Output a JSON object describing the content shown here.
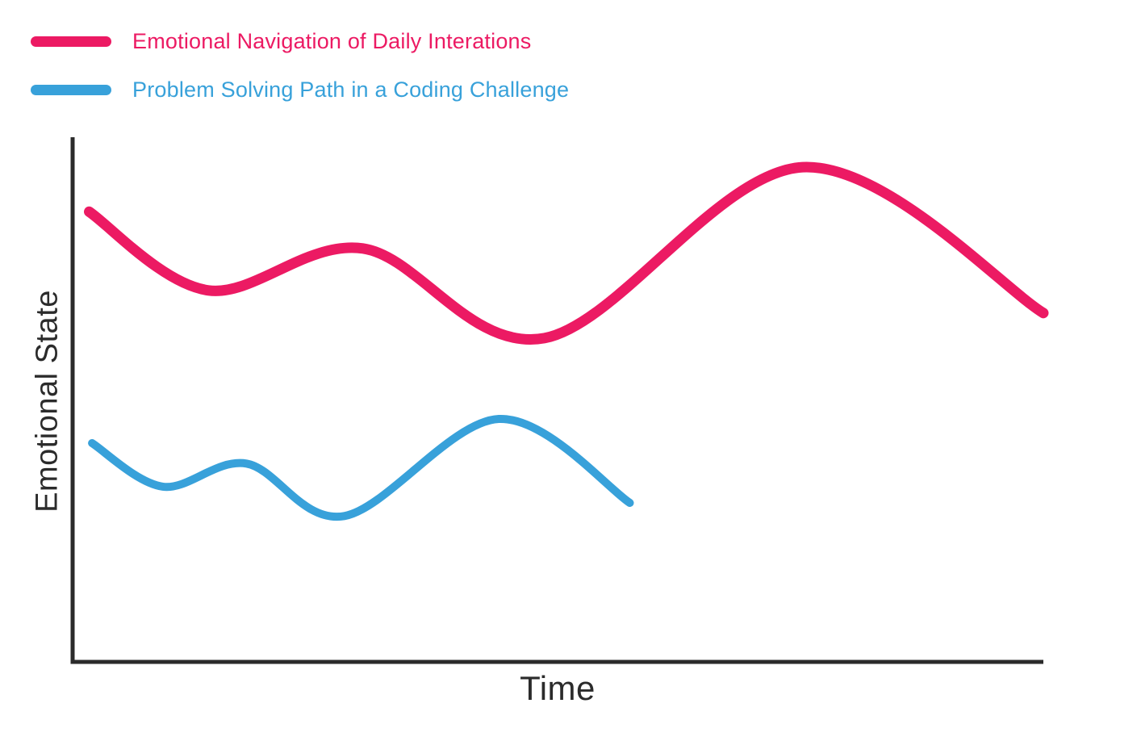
{
  "axes": {
    "x_label": "Time",
    "y_label": "Emotional State",
    "color": "#2B2B2B"
  },
  "chart_data": {
    "type": "line",
    "title": "",
    "xlabel": "Time",
    "ylabel": "Emotional State",
    "x_range": [
      0,
      100
    ],
    "y_range": [
      0,
      100
    ],
    "grid": false,
    "tick_labels": "none",
    "legend_position": "top-left",
    "style": "smooth hand-drawn waves, no markers",
    "series": [
      {
        "name": "Emotional Navigation of Daily Interations",
        "color": "#EC1A63",
        "stroke_width": 13,
        "points": [
          {
            "x": 1.7,
            "y": 85.8
          },
          {
            "x": 14.0,
            "y": 70.8
          },
          {
            "x": 29.9,
            "y": 78.8
          },
          {
            "x": 48.6,
            "y": 61.7
          },
          {
            "x": 75.2,
            "y": 94.3
          },
          {
            "x": 100,
            "y": 66.5
          }
        ]
      },
      {
        "name": "Problem Solving Path in a Coding Challenge",
        "color": "#38A1DA",
        "stroke_width": 10,
        "points": [
          {
            "x": 2.0,
            "y": 41.7
          },
          {
            "x": 9.3,
            "y": 33.4
          },
          {
            "x": 17.9,
            "y": 37.8
          },
          {
            "x": 28.0,
            "y": 27.8
          },
          {
            "x": 43.9,
            "y": 46.3
          },
          {
            "x": 57.4,
            "y": 30.3
          }
        ]
      }
    ]
  }
}
